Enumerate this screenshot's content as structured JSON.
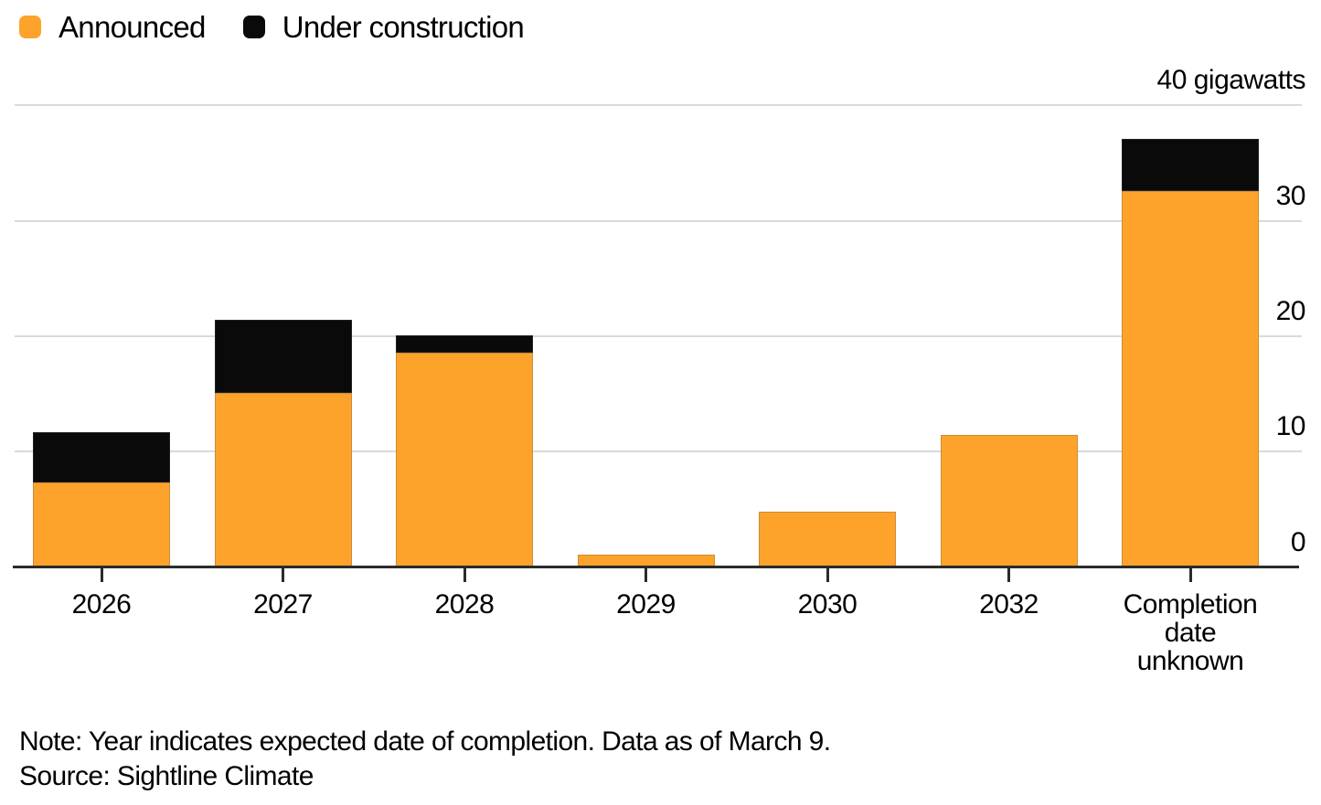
{
  "legend": {
    "items": [
      {
        "label": "Announced",
        "color": "#FDA32B",
        "icon": "orange-square-swatch"
      },
      {
        "label": "Under construction",
        "color": "#0A0A0A",
        "icon": "black-square-swatch"
      }
    ]
  },
  "chart_data": {
    "type": "bar",
    "stacked": true,
    "orientation": "vertical",
    "categories": [
      "2026",
      "2027",
      "2028",
      "2029",
      "2030",
      "2032",
      "Completion date unknown"
    ],
    "series": [
      {
        "name": "Announced",
        "color": "#FDA32B",
        "values": [
          7.3,
          15.1,
          18.6,
          1.1,
          4.8,
          11.4,
          32.6
        ]
      },
      {
        "name": "Under construction",
        "color": "#0A0A0A",
        "values": [
          4.4,
          6.3,
          1.5,
          0,
          0,
          0,
          4.5
        ]
      }
    ],
    "totals": [
      11.7,
      21.4,
      20.1,
      1.1,
      4.8,
      11.4,
      37.1
    ],
    "value_unit": "gigawatts",
    "ylim": [
      0,
      40
    ],
    "yticks": [
      {
        "value": 0,
        "label": "0"
      },
      {
        "value": 10,
        "label": "10"
      },
      {
        "value": 20,
        "label": "20"
      },
      {
        "value": 30,
        "label": "30"
      },
      {
        "value": 40,
        "label": "40 gigawatts"
      }
    ],
    "ytick_side": "right",
    "grid": true,
    "legend_position": "top-left",
    "colors": {
      "gridline": "#dadada",
      "axis": "#2b2b2b",
      "text": "#000000"
    }
  },
  "footer": {
    "note": "Note: Year indicates expected date of completion. Data as of March 9.",
    "source": "Source: Sightline Climate"
  }
}
